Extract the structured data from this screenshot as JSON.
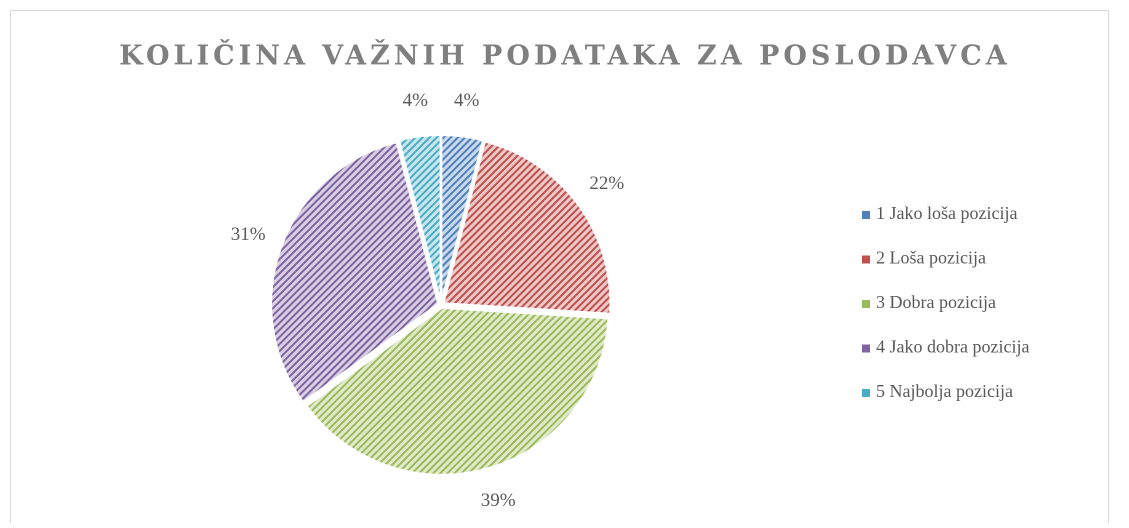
{
  "chart_data": {
    "type": "pie",
    "title": "KOLIČINA VAŽNIH PODATAKA ZA POSLODAVCA",
    "categories": [
      "1 Jako loša pozicija",
      "2 Loša pozicija",
      "3 Dobra pozicija",
      "4 Jako dobra pozicija",
      "5 Najbolja pozicija"
    ],
    "values": [
      4,
      22,
      39,
      31,
      4
    ],
    "value_labels": [
      "4%",
      "22%",
      "39%",
      "31%",
      "4%"
    ],
    "colors": [
      "#4f81bd",
      "#c0504d",
      "#9bbb59",
      "#8064a2",
      "#4bacc6"
    ],
    "legend": "right"
  }
}
